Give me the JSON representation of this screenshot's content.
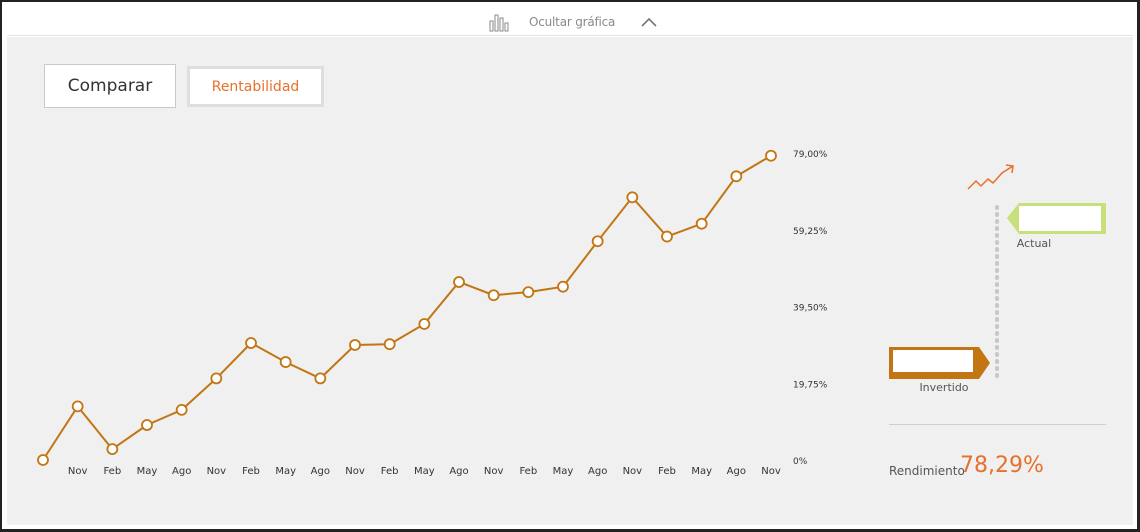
{
  "toolbar": {
    "toggle_label": "Ocultar gráfica",
    "chart_icon": "bar-chart-icon",
    "chevron_icon": "chevron-up-icon"
  },
  "buttons": {
    "compare_label": "Comparar",
    "profitability_label": "Rentabilidad"
  },
  "side": {
    "actual_label": "Actual",
    "invested_label": "Invertido",
    "trend_icon": "trend-up-icon",
    "performance_label": "Rendimiento",
    "performance_value": "78,29%"
  },
  "colors": {
    "line": "#c27512",
    "accent": "#e8702a",
    "actual": "#c8e07a",
    "invested": "#c27512",
    "panel": "#f0f0f0"
  },
  "chart_data": {
    "type": "line",
    "x_tick_labels": [
      "Nov",
      "Feb",
      "May",
      "Ago",
      "Nov",
      "Feb",
      "May",
      "Ago",
      "Nov",
      "Feb",
      "May",
      "Ago",
      "Nov",
      "Feb",
      "May",
      "Ago",
      "Nov",
      "Feb",
      "May",
      "Ago",
      "Nov"
    ],
    "y_tick_labels": [
      "0%",
      "19,75%",
      "39,50%",
      "59,25%",
      "79,00%"
    ],
    "ylim": [
      0,
      79
    ],
    "grid": false,
    "series": [
      {
        "values": [
          0,
          13.8,
          2.8,
          9.0,
          12.9,
          21.0,
          30.1,
          25.2,
          21.0,
          29.6,
          29.8,
          35.0,
          45.8,
          42.4,
          43.2,
          44.6,
          56.3,
          67.6,
          57.5,
          60.8,
          73.0,
          78.3
        ]
      }
    ]
  }
}
